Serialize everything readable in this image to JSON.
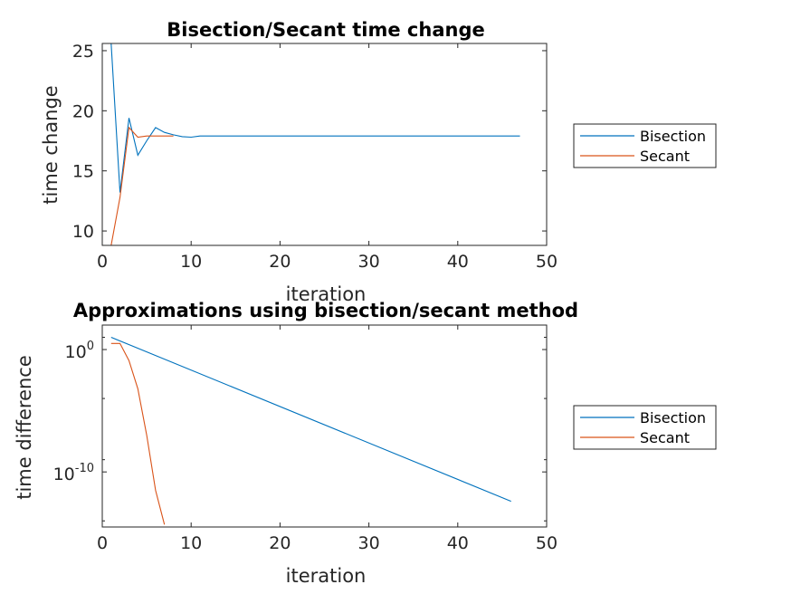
{
  "chart_data": [
    {
      "type": "line",
      "title": "Bisection/Secant time change",
      "xlabel": "iteration",
      "ylabel": "time change",
      "xlim": [
        0,
        50
      ],
      "ylim": [
        8.8,
        25.6
      ],
      "xticks": [
        0,
        10,
        20,
        30,
        40,
        50
      ],
      "yticks": [
        10,
        15,
        20,
        25
      ],
      "xtick_labels": [
        "0",
        "10",
        "20",
        "30",
        "40",
        "50"
      ],
      "ytick_labels": [
        "10",
        "15",
        "20",
        "25"
      ],
      "yscale": "linear",
      "legend": "outside-right",
      "series": [
        {
          "name": "Bisection",
          "color": "#0072BD",
          "x": [
            1,
            2,
            3,
            4,
            5,
            6,
            7,
            8,
            9,
            10,
            11,
            12,
            15,
            20,
            25,
            30,
            35,
            40,
            45,
            47
          ],
          "y": [
            25.6,
            13.2,
            19.4,
            16.3,
            17.5,
            18.6,
            18.2,
            18.0,
            17.85,
            17.8,
            17.9,
            17.9,
            17.9,
            17.9,
            17.9,
            17.9,
            17.9,
            17.9,
            17.9,
            17.9
          ]
        },
        {
          "name": "Secant",
          "color": "#D95319",
          "x": [
            1,
            2,
            3,
            4,
            5,
            6,
            7,
            8
          ],
          "y": [
            8.8,
            12.8,
            18.6,
            17.8,
            17.9,
            17.9,
            17.9,
            17.9
          ]
        }
      ]
    },
    {
      "type": "line",
      "title": "Approximations using bisection/secant method",
      "xlabel": "iteration",
      "ylabel": "time difference",
      "xlim": [
        0,
        50
      ],
      "ylim_log10": [
        -14.5,
        2.0
      ],
      "xticks": [
        0,
        10,
        20,
        30,
        40,
        50
      ],
      "yticks_log10": [
        0,
        -10
      ],
      "xtick_labels": [
        "0",
        "10",
        "20",
        "30",
        "40",
        "50"
      ],
      "ytick_labels": [
        {
          "base": "10",
          "exp": "0"
        },
        {
          "base": "10",
          "exp": "-10"
        }
      ],
      "yscale": "log",
      "legend": "outside-right",
      "series": [
        {
          "name": "Bisection",
          "color": "#0072BD",
          "x": [
            1,
            46
          ],
          "log10_y": [
            1.0,
            -12.4
          ]
        },
        {
          "name": "Secant",
          "color": "#D95319",
          "x": [
            1,
            2,
            3,
            4,
            5,
            6,
            7
          ],
          "log10_y": [
            0.5,
            0.5,
            -0.9,
            -3.2,
            -7.0,
            -11.5,
            -14.3
          ]
        }
      ]
    }
  ]
}
